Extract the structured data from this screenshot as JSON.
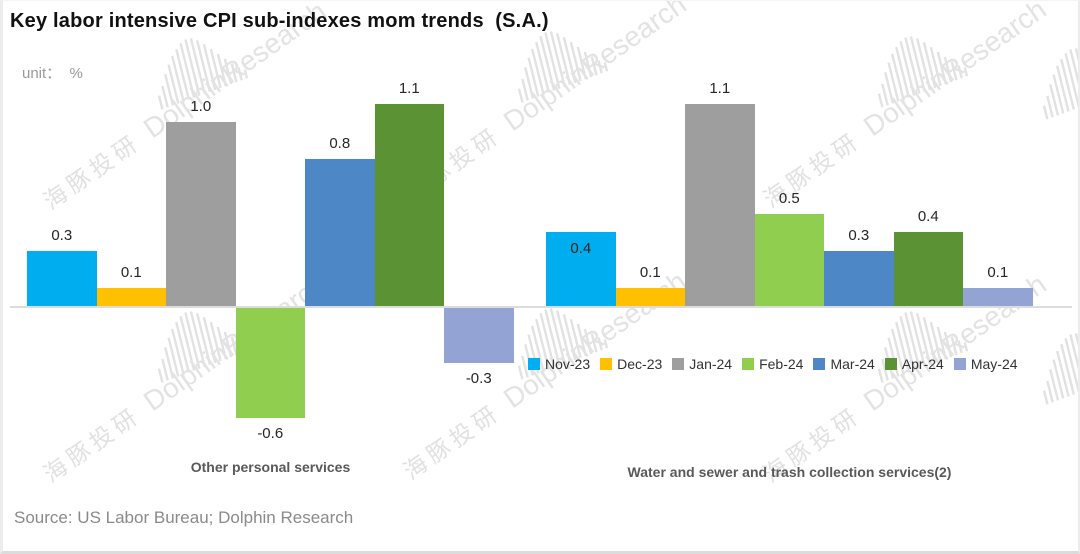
{
  "title": "Key labor intensive CPI sub-indexes mom trends  (S.A.)",
  "unit_label": "unit：  %",
  "source": "Source: US Labor Bureau; Dolphin Research",
  "watermark": {
    "cn": "海豚投研",
    "en": "DolphinResearch"
  },
  "chart_data": {
    "type": "bar",
    "title": "Key labor intensive CPI sub-indexes mom trends  (S.A.)",
    "ylabel": "%",
    "ylim": [
      -0.75,
      1.35
    ],
    "grid": false,
    "legend_position": "bottom-right",
    "categories": [
      "Other personal services",
      "Water and sewer and trash collection services(2)"
    ],
    "series": [
      {
        "name": "Nov-23",
        "color": "#00ADEE",
        "values": [
          0.3,
          0.4
        ]
      },
      {
        "name": "Dec-23",
        "color": "#FFC000",
        "values": [
          0.1,
          0.1
        ]
      },
      {
        "name": "Jan-24",
        "color": "#9E9E9E",
        "values": [
          1.0,
          1.1
        ]
      },
      {
        "name": "Feb-24",
        "color": "#8FCE4E",
        "values": [
          -0.6,
          0.5
        ]
      },
      {
        "name": "Mar-24",
        "color": "#4E87C5",
        "values": [
          0.8,
          0.3
        ]
      },
      {
        "name": "Apr-24",
        "color": "#5B9334",
        "values": [
          1.1,
          0.4
        ]
      },
      {
        "name": "May-24",
        "color": "#93A4D4",
        "values": [
          -0.3,
          0.1
        ]
      }
    ],
    "label_overrides": [
      {
        "series": "Nov-23",
        "category_index": 1,
        "position": "inside"
      }
    ]
  }
}
